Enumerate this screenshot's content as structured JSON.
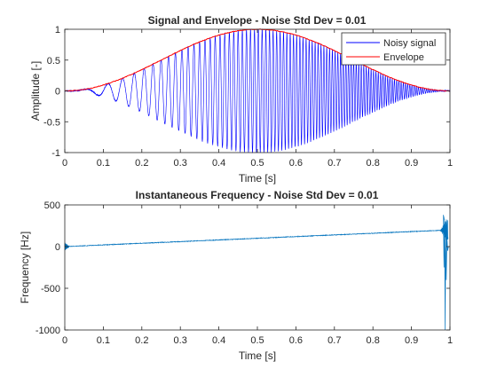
{
  "chart_data": [
    {
      "type": "line",
      "title": "Signal and Envelope - Noise Std Dev = 0.01",
      "xlabel": "Time [s]",
      "ylabel": "Amplitude [-]",
      "xlim": [
        0,
        1
      ],
      "ylim": [
        -1,
        1
      ],
      "xticks": [
        "0",
        "0.1",
        "0.2",
        "0.3",
        "0.4",
        "0.5",
        "0.6",
        "0.7",
        "0.8",
        "0.9",
        "1"
      ],
      "yticks": [
        "-1",
        "-0.5",
        "0",
        "0.5",
        "1"
      ],
      "grid": false,
      "legend_position": "top-right",
      "series": [
        {
          "name": "Noisy signal",
          "color": "#0000ff",
          "description_values": {
            "model": "sin^2(pi*t) * sin(2*pi*f(t)*t), chirp from ~0 Hz to ~200 Hz",
            "peak_amplitude": 1.0,
            "peak_time": 0.5
          }
        },
        {
          "name": "Envelope",
          "color": "#ff0000",
          "description_values": {
            "model": "sin^2(pi*t)",
            "peak_amplitude": 1.0,
            "peak_time": 0.5
          }
        }
      ]
    },
    {
      "type": "line",
      "title": "Instantaneous Frequency - Noise Std Dev = 0.01",
      "xlabel": "Time [s]",
      "ylabel": "Frequency [Hz]",
      "xlim": [
        0,
        1
      ],
      "ylim": [
        -1000,
        500
      ],
      "xticks": [
        "0",
        "0.1",
        "0.2",
        "0.3",
        "0.4",
        "0.5",
        "0.6",
        "0.7",
        "0.8",
        "0.9",
        "1"
      ],
      "yticks": [
        "-1000",
        "-500",
        "0",
        "500"
      ],
      "grid": false,
      "series": [
        {
          "color": "#0072bd",
          "x": [
            0,
            0.01,
            0.1,
            0.2,
            0.3,
            0.4,
            0.5,
            0.6,
            0.7,
            0.8,
            0.9,
            0.98,
            0.99
          ],
          "y": [
            0,
            15,
            30,
            50,
            65,
            85,
            100,
            120,
            135,
            155,
            170,
            195,
            -1000
          ]
        }
      ]
    }
  ]
}
